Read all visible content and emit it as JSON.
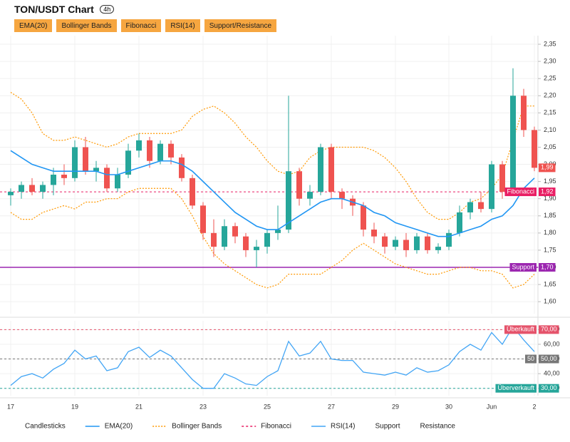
{
  "header": {
    "title": "TON/USDT Chart",
    "interval": "4h",
    "buttons": [
      "EMA(20)",
      "Bollinger Bands",
      "Fibonacci",
      "RSI(14)",
      "Support/Resistance"
    ]
  },
  "legend": [
    {
      "name": "Candlesticks"
    },
    {
      "name": "EMA(20)",
      "color": "#2196f3",
      "style": "solid"
    },
    {
      "name": "Bollinger Bands",
      "color": "#ff9800",
      "style": "dotted"
    },
    {
      "name": "Fibonacci",
      "color": "#e91e63",
      "style": "dashed"
    },
    {
      "name": "RSI(14)",
      "color": "#42a5f5",
      "style": "solid"
    },
    {
      "name": "Support"
    },
    {
      "name": "Resistance"
    }
  ],
  "chart_data": [
    {
      "type": "candlestick",
      "categories": [
        "17",
        null,
        null,
        null,
        null,
        null,
        "19",
        null,
        null,
        null,
        null,
        null,
        "21",
        null,
        null,
        null,
        null,
        null,
        "23",
        null,
        null,
        null,
        null,
        null,
        "25",
        null,
        null,
        null,
        null,
        null,
        "27",
        null,
        null,
        null,
        null,
        null,
        "29",
        null,
        null,
        null,
        null,
        "30",
        null,
        null,
        null,
        "Jun",
        null,
        null,
        null,
        "2"
      ],
      "open": [
        1.91,
        1.92,
        1.94,
        1.92,
        1.94,
        1.97,
        1.96,
        2.05,
        1.98,
        1.99,
        1.93,
        1.97,
        2.04,
        2.07,
        2.01,
        2.06,
        2.02,
        1.96,
        1.88,
        1.8,
        1.76,
        1.82,
        1.79,
        1.75,
        1.76,
        1.8,
        1.81,
        1.98,
        1.9,
        1.92,
        2.05,
        1.92,
        1.9,
        1.88,
        1.81,
        1.79,
        1.76,
        1.78,
        1.75,
        1.79,
        1.75,
        1.76,
        1.8,
        1.86,
        1.89,
        1.87,
        2.0,
        1.92,
        2.2,
        2.1
      ],
      "high": [
        1.93,
        1.95,
        1.96,
        1.95,
        1.99,
        2.0,
        2.07,
        2.08,
        2.01,
        2.0,
        1.99,
        2.06,
        2.09,
        2.08,
        2.07,
        2.07,
        2.03,
        1.97,
        1.89,
        1.84,
        1.84,
        1.83,
        1.8,
        1.78,
        1.81,
        1.88,
        2.2,
        1.99,
        1.94,
        2.06,
        2.06,
        1.93,
        1.91,
        1.89,
        1.83,
        1.8,
        1.79,
        1.8,
        1.8,
        1.8,
        1.77,
        1.81,
        1.88,
        1.9,
        1.92,
        2.01,
        2.01,
        2.28,
        2.22,
        2.11
      ],
      "low": [
        1.88,
        1.9,
        1.91,
        1.9,
        1.91,
        1.94,
        1.95,
        1.97,
        1.95,
        1.92,
        1.92,
        1.96,
        2.02,
        1.99,
        2.0,
        2.0,
        1.95,
        1.87,
        1.78,
        1.73,
        1.75,
        1.77,
        1.73,
        1.7,
        1.74,
        1.78,
        1.8,
        1.88,
        1.88,
        1.91,
        1.9,
        1.87,
        1.85,
        1.79,
        1.77,
        1.74,
        1.75,
        1.73,
        1.74,
        1.74,
        1.74,
        1.75,
        1.79,
        1.84,
        1.86,
        1.86,
        1.9,
        1.91,
        2.08,
        1.98
      ],
      "close": [
        1.92,
        1.94,
        1.92,
        1.94,
        1.97,
        1.96,
        2.05,
        1.98,
        1.99,
        1.93,
        1.97,
        2.04,
        2.07,
        2.01,
        2.06,
        2.02,
        1.96,
        1.88,
        1.8,
        1.76,
        1.82,
        1.79,
        1.75,
        1.76,
        1.8,
        1.81,
        1.98,
        1.9,
        1.92,
        2.05,
        1.92,
        1.9,
        1.88,
        1.81,
        1.79,
        1.76,
        1.78,
        1.75,
        1.79,
        1.75,
        1.76,
        1.8,
        1.86,
        1.89,
        1.87,
        2.0,
        1.92,
        2.2,
        2.1,
        1.99
      ],
      "up_color": "#26a69a",
      "down_color": "#ef5350",
      "ema": {
        "color": "#2196f3",
        "values": [
          2.04,
          2.02,
          2.0,
          1.99,
          1.98,
          1.98,
          1.98,
          1.98,
          1.98,
          1.97,
          1.97,
          1.98,
          1.99,
          2.0,
          2.01,
          2.01,
          2.0,
          1.98,
          1.95,
          1.92,
          1.89,
          1.86,
          1.84,
          1.82,
          1.81,
          1.81,
          1.83,
          1.85,
          1.87,
          1.89,
          1.9,
          1.9,
          1.89,
          1.88,
          1.86,
          1.85,
          1.83,
          1.82,
          1.81,
          1.8,
          1.79,
          1.79,
          1.8,
          1.81,
          1.82,
          1.84,
          1.85,
          1.88,
          1.93,
          1.96
        ]
      },
      "bollinger": {
        "color": "#ff9800",
        "upper": [
          2.21,
          2.19,
          2.15,
          2.09,
          2.07,
          2.07,
          2.08,
          2.07,
          2.06,
          2.05,
          2.06,
          2.08,
          2.09,
          2.09,
          2.09,
          2.09,
          2.1,
          2.14,
          2.16,
          2.17,
          2.15,
          2.12,
          2.08,
          2.05,
          2.01,
          1.98,
          1.97,
          1.98,
          2.02,
          2.04,
          2.05,
          2.05,
          2.05,
          2.05,
          2.04,
          2.02,
          1.99,
          1.95,
          1.9,
          1.86,
          1.84,
          1.84,
          1.86,
          1.89,
          1.9,
          1.93,
          1.97,
          2.07,
          2.17,
          2.17
        ],
        "lower": [
          1.86,
          1.84,
          1.84,
          1.86,
          1.87,
          1.88,
          1.87,
          1.89,
          1.89,
          1.9,
          1.9,
          1.92,
          1.93,
          1.93,
          1.93,
          1.93,
          1.9,
          1.85,
          1.79,
          1.74,
          1.71,
          1.69,
          1.67,
          1.65,
          1.64,
          1.65,
          1.68,
          1.68,
          1.68,
          1.68,
          1.7,
          1.72,
          1.75,
          1.77,
          1.75,
          1.73,
          1.71,
          1.7,
          1.69,
          1.68,
          1.68,
          1.69,
          1.7,
          1.7,
          1.69,
          1.69,
          1.68,
          1.64,
          1.65,
          1.68
        ]
      },
      "levels": [
        {
          "name": "Fibonacci",
          "value": 1.92,
          "value_label": "1,92",
          "color": "#e91e63",
          "style": "dashed"
        },
        {
          "name": "Support",
          "value": 1.7,
          "value_label": "1,70",
          "color": "#9c27b0",
          "style": "solid"
        }
      ],
      "last_price": {
        "value": 1.99,
        "label": "1,99",
        "color": "#ef5350"
      },
      "ylim": [
        1.565,
        2.375
      ],
      "yticks": [
        {
          "value": 2.35,
          "label": "2,35"
        },
        {
          "value": 2.3,
          "label": "2,30"
        },
        {
          "value": 2.25,
          "label": "2,25"
        },
        {
          "value": 2.2,
          "label": "2,20"
        },
        {
          "value": 2.15,
          "label": "2,15"
        },
        {
          "value": 2.1,
          "label": "2,10"
        },
        {
          "value": 2.05,
          "label": "2,05"
        },
        {
          "value": 2.0,
          "label": "2,00"
        },
        {
          "value": 1.95,
          "label": "1,95"
        },
        {
          "value": 1.9,
          "label": "1,90"
        },
        {
          "value": 1.85,
          "label": "1,85"
        },
        {
          "value": 1.8,
          "label": "1,80"
        },
        {
          "value": 1.75,
          "label": "1,75"
        },
        {
          "value": 1.7,
          "label": "1,70"
        },
        {
          "value": 1.65,
          "label": "1,65"
        },
        {
          "value": 1.6,
          "label": "1,60"
        }
      ],
      "grid": true
    },
    {
      "type": "line",
      "color": "#42a5f5",
      "values": [
        32,
        38,
        40,
        37,
        43,
        47,
        56,
        50,
        52,
        42,
        44,
        55,
        58,
        51,
        56,
        52,
        44,
        36,
        30,
        30,
        40,
        37,
        33,
        32,
        38,
        42,
        62,
        52,
        54,
        62,
        50,
        49,
        49,
        41,
        40,
        39,
        41,
        39,
        44,
        41,
        42,
        46,
        55,
        60,
        56,
        68,
        60,
        72,
        63,
        55
      ],
      "levels": [
        {
          "name": "Überkauft",
          "value": 70,
          "value_label": "70,00",
          "color": "#e5536b"
        },
        {
          "name": "50",
          "value": 50,
          "value_label": "50,00",
          "color": "#777777"
        },
        {
          "name": "Überverkauft",
          "value": 30,
          "value_label": "30,00",
          "color": "#26a69a"
        }
      ],
      "ylim": [
        25,
        76
      ],
      "yticks": [
        {
          "value": 70,
          "label": "70,00"
        },
        {
          "value": 60,
          "label": "60,00"
        },
        {
          "value": 50,
          "label": "50,00"
        },
        {
          "value": 40,
          "label": "40,00"
        },
        {
          "value": 30,
          "label": "30,00"
        }
      ],
      "grid": true
    }
  ]
}
